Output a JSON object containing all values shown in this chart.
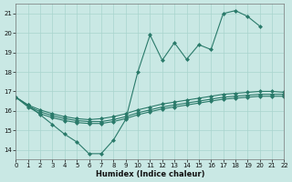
{
  "xlabel": "Humidex (Indice chaleur)",
  "xlim": [
    0,
    22
  ],
  "ylim": [
    13.5,
    21.5
  ],
  "yticks": [
    14,
    15,
    16,
    17,
    18,
    19,
    20,
    21
  ],
  "xticks": [
    0,
    1,
    2,
    3,
    4,
    5,
    6,
    7,
    8,
    9,
    10,
    11,
    12,
    13,
    14,
    15,
    16,
    17,
    18,
    19,
    20,
    21,
    22
  ],
  "background_color": "#c9e8e4",
  "grid_color": "#a8d4ce",
  "line_color": "#2a7a6a",
  "series": {
    "line1_x": [
      0,
      1,
      2,
      3,
      4,
      5,
      6,
      7,
      8,
      9,
      10,
      11,
      12,
      13,
      14,
      15,
      16,
      17,
      18,
      19,
      20
    ],
    "line1_y": [
      16.7,
      16.3,
      15.8,
      15.3,
      14.8,
      14.4,
      13.8,
      13.8,
      14.5,
      15.55,
      18.0,
      19.9,
      18.6,
      19.5,
      18.65,
      19.4,
      19.15,
      21.0,
      21.15,
      20.85,
      20.35
    ],
    "line2_x": [
      0,
      1,
      2,
      3,
      4,
      5,
      6,
      7,
      8,
      9,
      10,
      11,
      12,
      13,
      14,
      15,
      16,
      17,
      18,
      19,
      20,
      21,
      22
    ],
    "line2_y": [
      16.7,
      16.3,
      16.05,
      15.85,
      15.7,
      15.6,
      15.55,
      15.6,
      15.7,
      15.85,
      16.05,
      16.2,
      16.35,
      16.45,
      16.55,
      16.65,
      16.75,
      16.85,
      16.9,
      16.95,
      17.0,
      17.0,
      16.95
    ],
    "line3_x": [
      0,
      1,
      2,
      3,
      4,
      5,
      6,
      7,
      8,
      9,
      10,
      11,
      12,
      13,
      14,
      15,
      16,
      17,
      18,
      19,
      20,
      21,
      22
    ],
    "line3_y": [
      16.7,
      16.25,
      15.95,
      15.75,
      15.6,
      15.5,
      15.45,
      15.45,
      15.55,
      15.7,
      15.9,
      16.05,
      16.2,
      16.3,
      16.4,
      16.5,
      16.6,
      16.7,
      16.75,
      16.8,
      16.85,
      16.85,
      16.85
    ],
    "line4_x": [
      0,
      1,
      2,
      3,
      4,
      5,
      6,
      7,
      8,
      9,
      10,
      11,
      12,
      13,
      14,
      15,
      16,
      17,
      18,
      19,
      20,
      21,
      22
    ],
    "line4_y": [
      16.7,
      16.2,
      15.85,
      15.65,
      15.5,
      15.4,
      15.35,
      15.35,
      15.45,
      15.6,
      15.8,
      15.95,
      16.1,
      16.2,
      16.3,
      16.4,
      16.5,
      16.6,
      16.65,
      16.7,
      16.75,
      16.75,
      16.75
    ]
  }
}
